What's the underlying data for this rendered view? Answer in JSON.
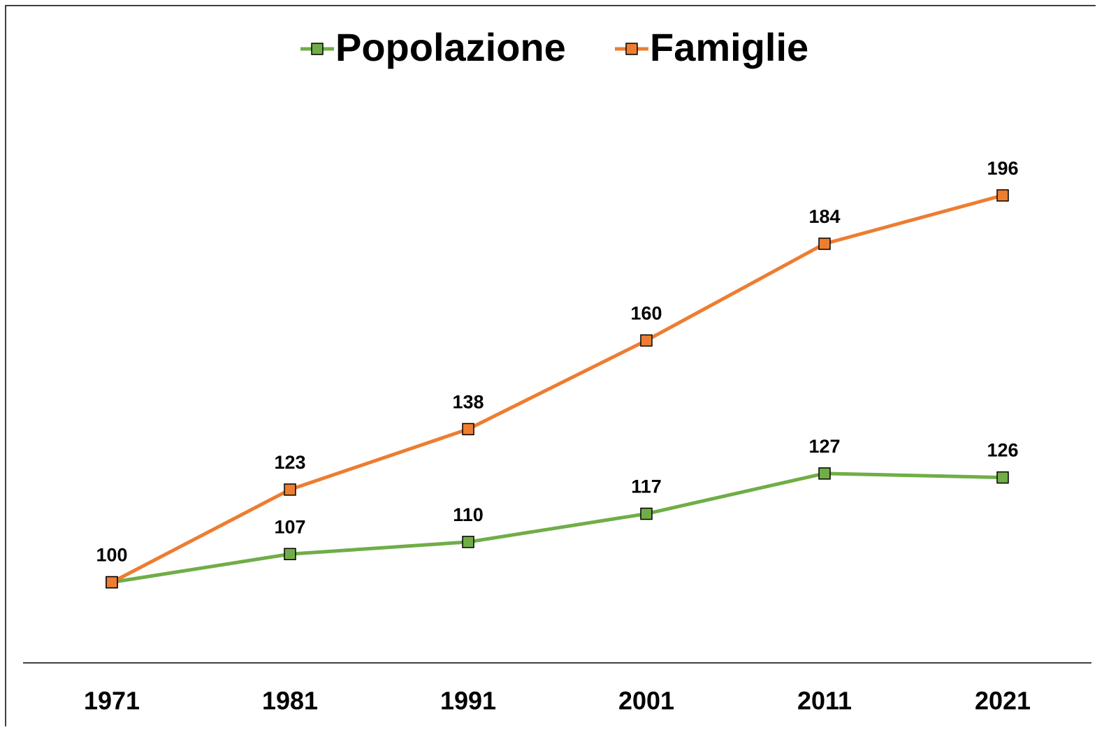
{
  "chart_data": {
    "type": "line",
    "categories": [
      "1971",
      "1981",
      "1991",
      "2001",
      "2011",
      "2021"
    ],
    "series": [
      {
        "name": "Popolazione",
        "color": "#70ad47",
        "values": [
          100,
          107,
          110,
          117,
          127,
          126
        ]
      },
      {
        "name": "Famiglie",
        "color": "#ed7d31",
        "values": [
          100,
          123,
          138,
          160,
          184,
          196
        ]
      }
    ],
    "ylim": [
      80,
      210
    ],
    "legend": "top"
  }
}
